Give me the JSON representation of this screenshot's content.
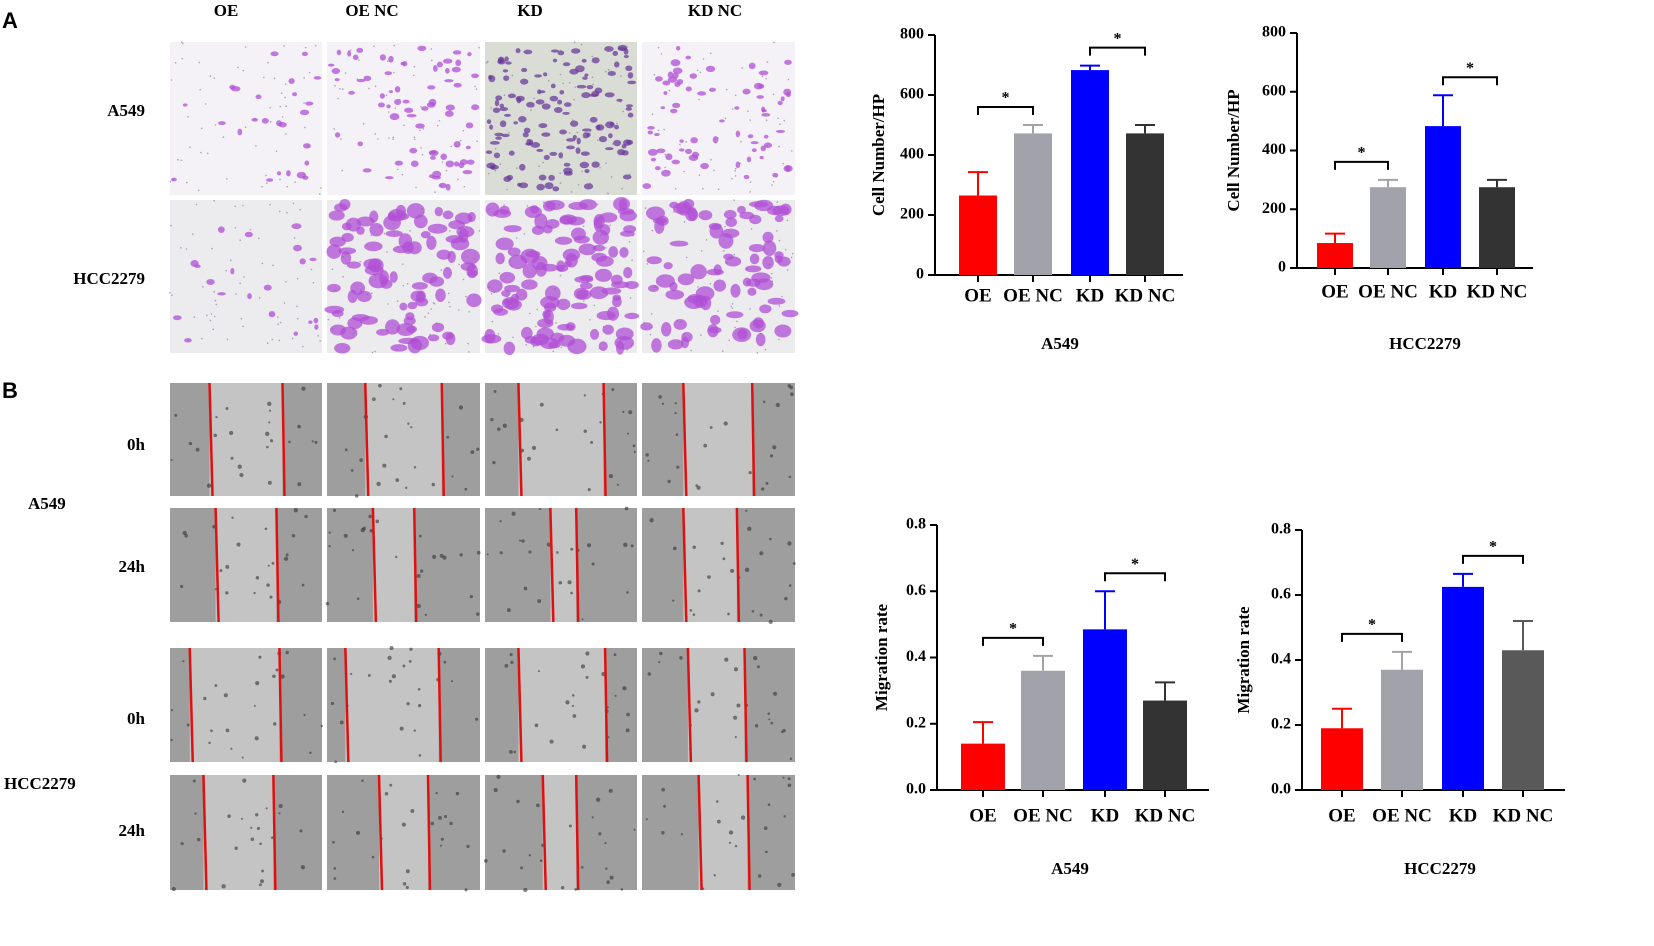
{
  "panel_labels": [
    "A",
    "B"
  ],
  "transwell": {
    "columns": [
      "OE",
      "OE NC",
      "KD",
      "KD NC"
    ],
    "rows": [
      "A549",
      "HCC2279"
    ]
  },
  "wound": {
    "cell_lines": [
      "A549",
      "HCC2279"
    ],
    "times": [
      "0h",
      "24h"
    ]
  },
  "chart_data": [
    {
      "type": "bar",
      "xlabel": "A549",
      "ylabel": "Cell Number/HP",
      "categories": [
        "OE",
        "OE NC",
        "KD",
        "KD NC"
      ],
      "values": [
        265,
        472,
        683,
        472
      ],
      "errors": [
        78,
        28,
        15,
        28
      ],
      "colors": [
        "#ff0000",
        "#a2a2aa",
        "#0000ff",
        "#333333"
      ],
      "ylim": [
        0,
        800
      ],
      "yticks": [
        0,
        200,
        400,
        600,
        800
      ],
      "annotations": [
        {
          "text": "*",
          "between": [
            0,
            1
          ]
        },
        {
          "text": "*",
          "between": [
            2,
            3
          ]
        }
      ]
    },
    {
      "type": "bar",
      "xlabel": "HCC2279",
      "ylabel": "Cell Number/HP",
      "categories": [
        "OE",
        "OE NC",
        "KD",
        "KD NC"
      ],
      "values": [
        85,
        275,
        483,
        275
      ],
      "errors": [
        32,
        25,
        105,
        25
      ],
      "colors": [
        "#ff0000",
        "#a2a2aa",
        "#0000ff",
        "#333333"
      ],
      "ylim": [
        0,
        800
      ],
      "yticks": [
        0,
        200,
        400,
        600,
        800
      ],
      "annotations": [
        {
          "text": "*",
          "between": [
            0,
            1
          ]
        },
        {
          "text": "*",
          "between": [
            2,
            3
          ]
        }
      ]
    },
    {
      "type": "bar",
      "xlabel": "A549",
      "ylabel": "Migration rate",
      "categories": [
        "OE",
        "OE NC",
        "KD",
        "KD NC"
      ],
      "values": [
        0.14,
        0.36,
        0.485,
        0.27
      ],
      "errors": [
        0.065,
        0.045,
        0.115,
        0.055
      ],
      "colors": [
        "#ff0000",
        "#a2a2aa",
        "#0000ff",
        "#333333"
      ],
      "ylim": [
        0,
        0.8
      ],
      "yticks": [
        {
          "value": 0,
          "label": "0.0"
        },
        0.2,
        0.4,
        0.6,
        0.8
      ],
      "annotations": [
        {
          "text": "*",
          "between": [
            0,
            1
          ]
        },
        {
          "text": "*",
          "between": [
            2,
            3
          ]
        }
      ]
    },
    {
      "type": "bar",
      "xlabel": "HCC2279",
      "ylabel": "Migration rate",
      "categories": [
        "OE",
        "OE NC",
        "KD",
        "KD NC"
      ],
      "values": [
        0.19,
        0.37,
        0.625,
        0.43
      ],
      "errors": [
        0.06,
        0.055,
        0.04,
        0.09
      ],
      "colors": [
        "#ff0000",
        "#a2a2aa",
        "#0000ff",
        "#595959"
      ],
      "ylim": [
        0,
        0.8
      ],
      "yticks": [
        {
          "value": 0,
          "label": "0.0"
        },
        0.2,
        0.4,
        0.6,
        0.8
      ],
      "annotations": [
        {
          "text": "*",
          "between": [
            0,
            1
          ]
        },
        {
          "text": "*",
          "between": [
            2,
            3
          ]
        }
      ]
    }
  ]
}
